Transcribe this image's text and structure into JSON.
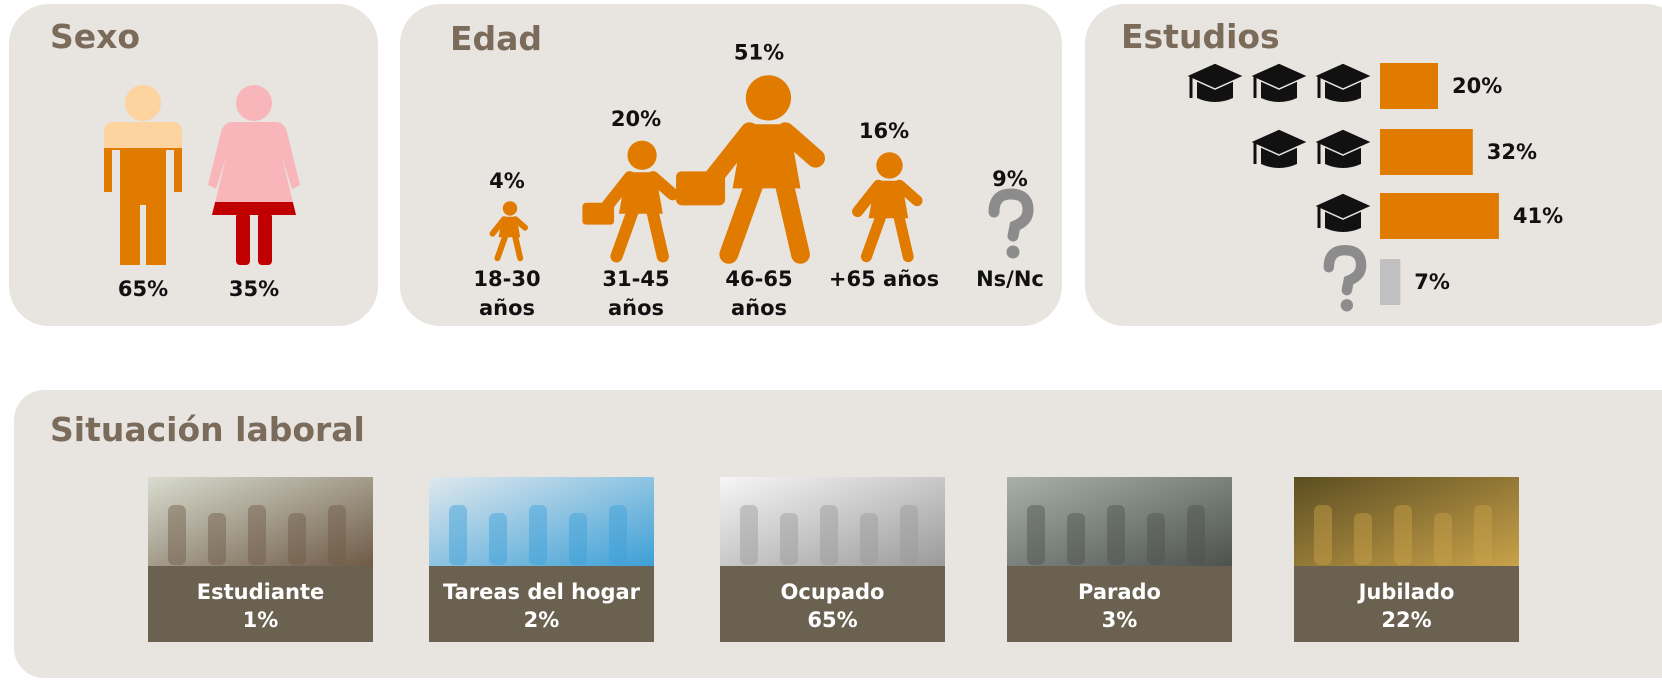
{
  "chart_data": [
    {
      "type": "pictogram-fill",
      "title": "Sexo",
      "categories": [
        null,
        null
      ],
      "values": [
        65,
        35
      ],
      "value_labels": [
        "65%",
        "35%"
      ],
      "colors": [
        "#e07b00",
        "#c00000"
      ],
      "base_colors": [
        "#fdd3a0",
        "#f9b6ba"
      ]
    },
    {
      "type": "pictogram-size",
      "title": "Edad",
      "categories": [
        "18-30 años",
        "31-45 años",
        "46-65 años",
        "+65 años",
        "Ns/Nc"
      ],
      "values": [
        4,
        20,
        51,
        16,
        9
      ],
      "value_labels": [
        "4%",
        "20%",
        "51%",
        "16%",
        "9%"
      ],
      "color": "#e07b00",
      "unknown_color": "#8c8c8c"
    },
    {
      "type": "bar",
      "orientation": "horizontal",
      "title": "Estudios",
      "categories": [
        null,
        null,
        null,
        null
      ],
      "values": [
        20,
        32,
        41,
        7
      ],
      "value_labels": [
        "20%",
        "32%",
        "41%",
        "7%"
      ],
      "colors": [
        "#e07b00",
        "#e07b00",
        "#e07b00",
        "#c0c0c0"
      ]
    },
    {
      "type": "cards",
      "title": "Situación laboral",
      "categories": [
        "Estudiante",
        "Tareas del hogar",
        "Ocupado",
        "Parado",
        "Jubilado"
      ],
      "values": [
        1,
        2,
        65,
        3,
        22
      ],
      "value_labels": [
        "1%",
        "2%",
        "65%",
        "3%",
        "22%"
      ],
      "color": "#6b6150"
    }
  ]
}
